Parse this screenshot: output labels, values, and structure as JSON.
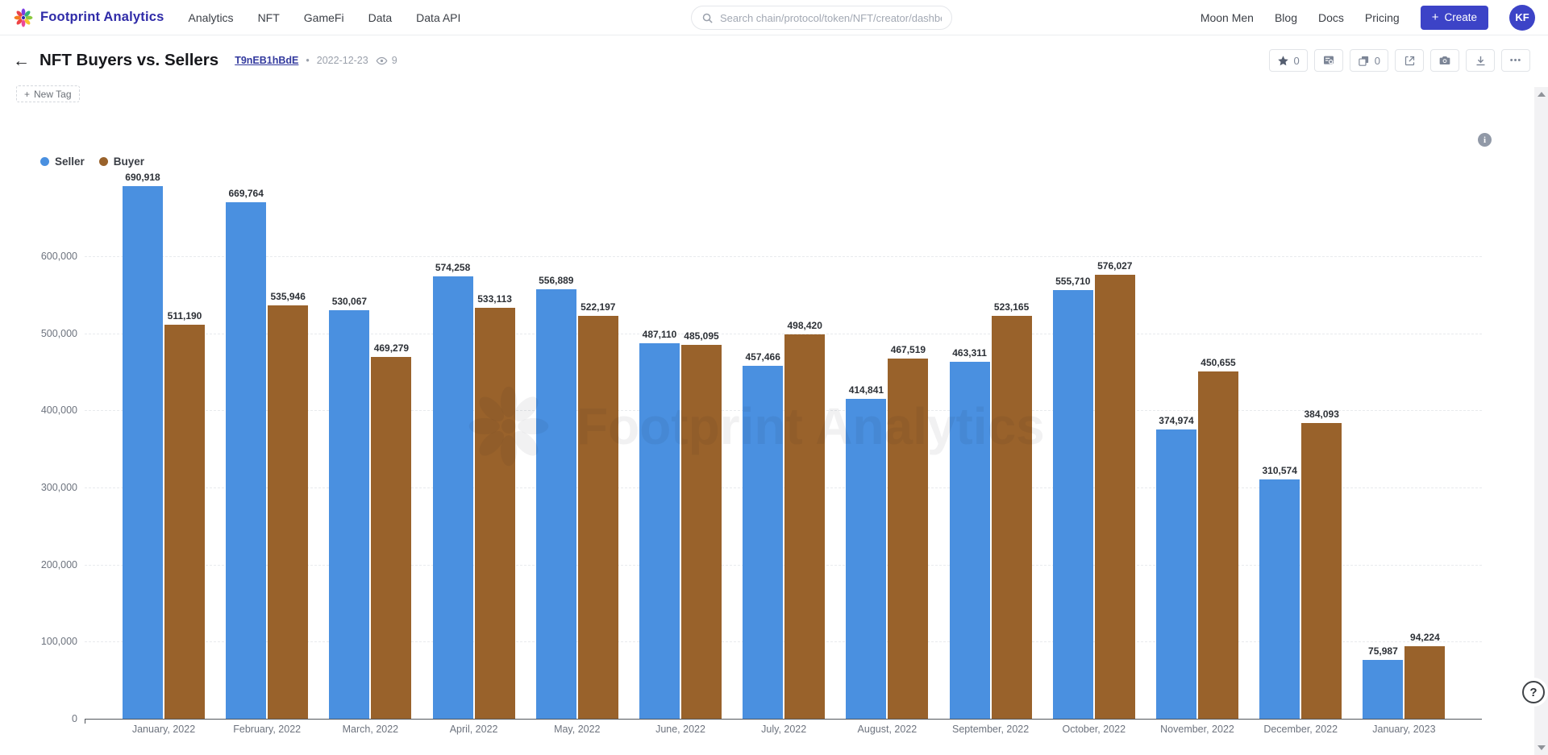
{
  "navbar": {
    "brand": "Footprint Analytics",
    "items": [
      "Analytics",
      "NFT",
      "GameFi",
      "Data",
      "Data API"
    ],
    "search_placeholder": "Search chain/protocol/token/NFT/creator/dashboard...",
    "right_items": [
      "Moon Men",
      "Blog",
      "Docs",
      "Pricing"
    ],
    "create_label": "Create",
    "plus_glyph": "+",
    "avatar_initials": "KF",
    "accent_color": "#3c43c7"
  },
  "title_bar": {
    "back_glyph": "←",
    "title": "NFT Buyers vs. Sellers",
    "tag_link": "T9nEB1hBdE",
    "separator": "•",
    "date": "2022-12-23",
    "views": "9",
    "star_count": "0",
    "copy_count": "0",
    "ellipsis_glyph": "•••"
  },
  "tags": {
    "new_tag_label": "New Tag",
    "plus_glyph": "+"
  },
  "watermark": {
    "text": "Footprint Analytics"
  },
  "help": {
    "label": "?"
  },
  "icons": {
    "star": "star-icon",
    "query": "query-report-icon",
    "copy": "copy-icon",
    "external": "external-link-icon",
    "camera": "camera-icon",
    "download": "download-icon",
    "more": "more-icon",
    "eye": "eye-icon",
    "search": "search-icon",
    "info": "info-icon"
  },
  "chart_data": {
    "type": "bar",
    "categories": [
      "January, 2022",
      "February, 2022",
      "March, 2022",
      "April, 2022",
      "May, 2022",
      "June, 2022",
      "July, 2022",
      "August, 2022",
      "September, 2022",
      "October, 2022",
      "November, 2022",
      "December, 2022",
      "January, 2023"
    ],
    "series": [
      {
        "name": "Seller",
        "color": "#4a90e0",
        "values": [
          690918,
          669764,
          530067,
          574258,
          556889,
          487110,
          457466,
          414841,
          463311,
          555710,
          374974,
          310574,
          75987
        ]
      },
      {
        "name": "Buyer",
        "color": "#99622b",
        "values": [
          511190,
          535946,
          469279,
          533113,
          522197,
          485095,
          498420,
          467519,
          523165,
          576027,
          450655,
          384093,
          94224
        ]
      }
    ],
    "ylim": [
      0,
      600000
    ],
    "y_ticks": [
      0,
      100000,
      200000,
      300000,
      400000,
      500000,
      600000
    ],
    "grid": "dashed-horizontal",
    "legend_position": "top-left",
    "value_labels": "on"
  }
}
